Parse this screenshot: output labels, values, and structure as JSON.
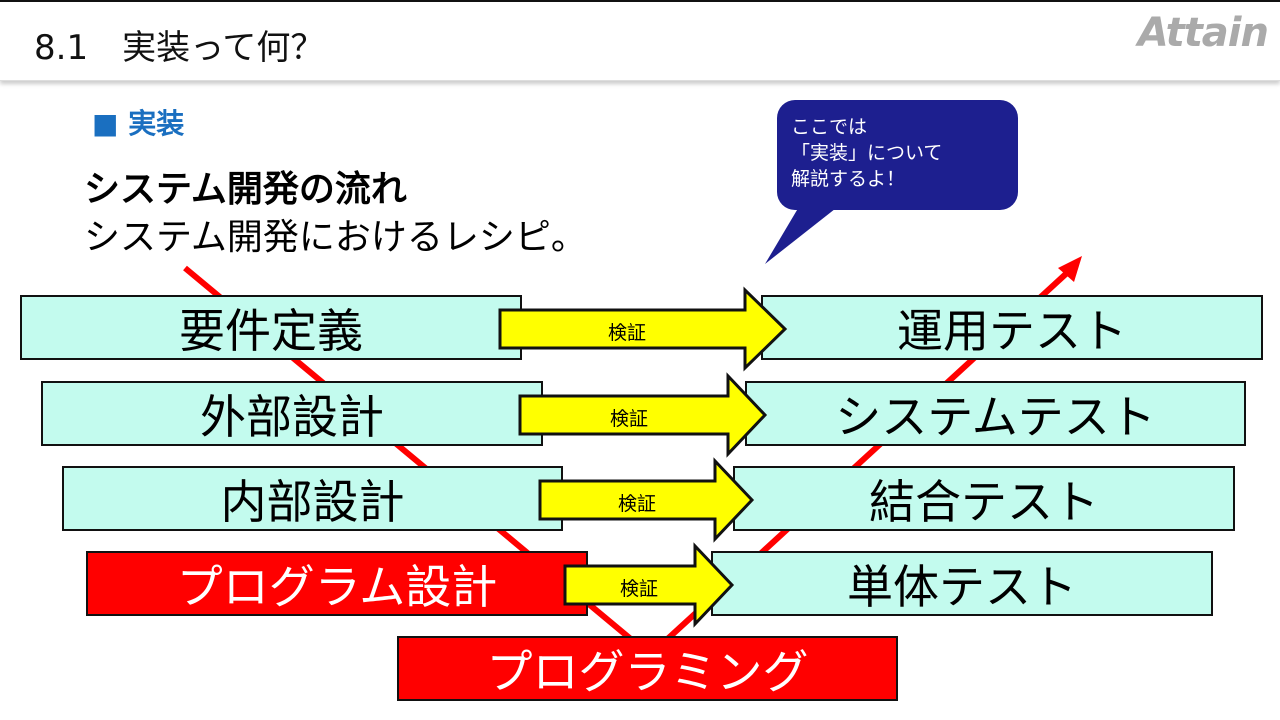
{
  "header": {
    "title": "8.1　実装って何？",
    "logo": "Attain"
  },
  "section": "■ 実装",
  "heading": "システム開発の流れ",
  "subheading": "システム開発におけるレシピ。",
  "bubble": {
    "line1": "ここでは",
    "line2": "「実装」について",
    "line3": "解説するよ！"
  },
  "left_steps": [
    {
      "label": "要件定義",
      "highlight": false
    },
    {
      "label": "外部設計",
      "highlight": false
    },
    {
      "label": "内部設計",
      "highlight": false
    },
    {
      "label": "プログラム設計",
      "highlight": true
    }
  ],
  "bottom_step": {
    "label": "プログラミング",
    "highlight": true
  },
  "right_steps": [
    {
      "label": "運用テスト"
    },
    {
      "label": "システムテスト"
    },
    {
      "label": "結合テスト"
    },
    {
      "label": "単体テスト"
    }
  ],
  "verify_label": "検証",
  "colors": {
    "box": "#c3fbee",
    "highlight": "#ff0000",
    "arrow": "#ffff00",
    "bubble": "#1d1f8f",
    "v_line": "#ff0000"
  }
}
